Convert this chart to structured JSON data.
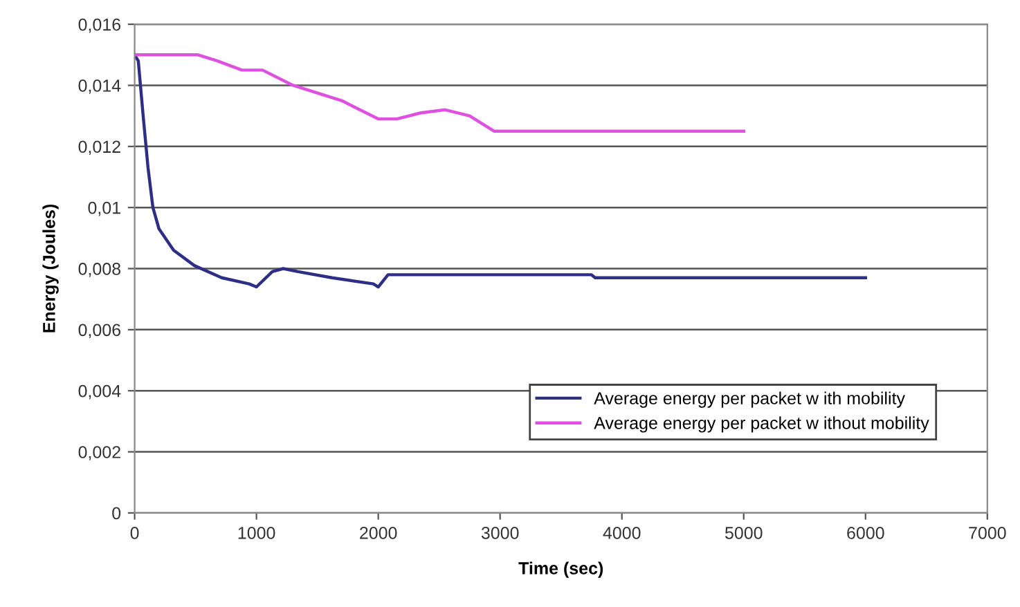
{
  "chart_data": {
    "type": "line",
    "xlabel": "Time (sec)",
    "ylabel": "Energy (Joules)",
    "xlim": [
      0,
      7000
    ],
    "xticks": [
      0,
      1000,
      2000,
      3000,
      4000,
      5000,
      6000,
      7000
    ],
    "ylim": [
      0,
      0.016
    ],
    "yticks": [
      {
        "value": 0,
        "label": "0"
      },
      {
        "value": 0.002,
        "label": "0,002"
      },
      {
        "value": 0.004,
        "label": "0,004"
      },
      {
        "value": 0.006,
        "label": "0,006"
      },
      {
        "value": 0.008,
        "label": "0,008"
      },
      {
        "value": 0.01,
        "label": "0,01"
      },
      {
        "value": 0.012,
        "label": "0,012"
      },
      {
        "value": 0.014,
        "label": "0,014"
      },
      {
        "value": 0.016,
        "label": "0,016"
      }
    ],
    "grid": "y",
    "legend": "bottom right",
    "marker": "none",
    "line_style": "solid",
    "series": [
      {
        "name": "Average energy per packet w ith mobility",
        "color": "#2e2e86",
        "x": [
          0,
          30,
          70,
          110,
          150,
          200,
          320,
          490,
          715,
          940,
          1000,
          1130,
          1220,
          1340,
          1620,
          1960,
          2000,
          2080,
          3000,
          3080,
          3200,
          3750,
          3780,
          6000
        ],
        "values": [
          0.015,
          0.0148,
          0.013,
          0.0113,
          0.01,
          0.0093,
          0.0086,
          0.0081,
          0.0077,
          0.0075,
          0.0074,
          0.0079,
          0.008,
          0.0079,
          0.0077,
          0.0075,
          0.0074,
          0.0078,
          0.0078,
          0.0078,
          0.0078,
          0.0078,
          0.0077,
          0.0077
        ]
      },
      {
        "name": "Average energy per packet w ithout mobility",
        "color": "#e050e0",
        "x": [
          0,
          520,
          680,
          880,
          1050,
          1300,
          1700,
          2000,
          2150,
          2350,
          2550,
          2750,
          2950,
          5000
        ],
        "values": [
          0.015,
          0.015,
          0.0148,
          0.0145,
          0.0145,
          0.014,
          0.0135,
          0.0129,
          0.0129,
          0.0131,
          0.0132,
          0.013,
          0.0125,
          0.0125
        ]
      }
    ]
  }
}
